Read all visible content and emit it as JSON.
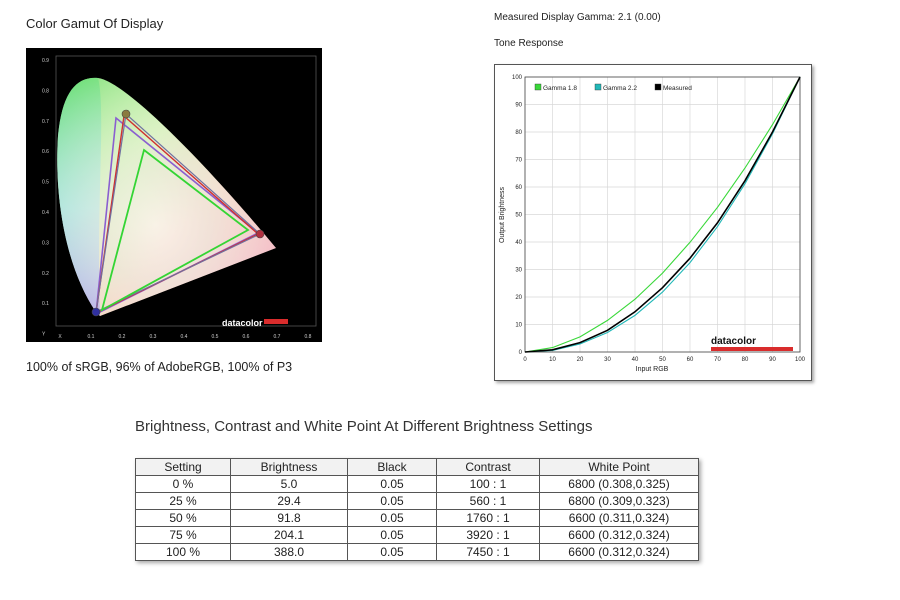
{
  "gamut": {
    "title": "Color Gamut Of Display",
    "caption": "100% of sRGB, 96% of AdobeRGB, 100% of P3",
    "brand": "datacolor",
    "y_ticks": [
      "0.9",
      "0.8",
      "0.7",
      "0.6",
      "0.5",
      "0.4",
      "0.3",
      "0.2",
      "0.1",
      "Y"
    ],
    "x_ticks": [
      "X",
      "0.1",
      "0.2",
      "0.3",
      "0.4",
      "0.5",
      "0.6",
      "0.7",
      "0.8"
    ],
    "colors": {
      "srgb": "#34d534",
      "adobe": "#8a5fd0",
      "p3": "#d03030",
      "measured": "#7070a0"
    }
  },
  "tone": {
    "measured_gamma": "Measured Display Gamma: 2.1 (0.00)",
    "title": "Tone Response",
    "brand": "datacolor"
  },
  "chart_data": {
    "type": "line",
    "x": [
      0,
      10,
      20,
      30,
      40,
      50,
      60,
      70,
      80,
      90,
      100
    ],
    "xlabel": "Input RGB",
    "ylabel": "Output Brightness",
    "xlim": [
      0,
      100
    ],
    "ylim": [
      0,
      100
    ],
    "ticks": [
      "0",
      "10",
      "20",
      "30",
      "40",
      "50",
      "60",
      "70",
      "80",
      "90",
      "100"
    ],
    "grid": true,
    "legend_position": "top-left",
    "series": [
      {
        "name": "Gamma 1.8",
        "color": "#39d839",
        "values": [
          0,
          1.6,
          5.5,
          11.5,
          19.2,
          28.7,
          39.9,
          52.6,
          66.9,
          82.7,
          100
        ]
      },
      {
        "name": "Gamma 2.2",
        "color": "#22b8b8",
        "values": [
          0,
          0.6,
          2.9,
          7.1,
          13.3,
          21.8,
          32.5,
          45.6,
          61.2,
          79.3,
          100
        ]
      },
      {
        "name": "Measured",
        "color": "#000000",
        "values": [
          0,
          0.8,
          3.4,
          7.9,
          14.6,
          23.4,
          34.1,
          47.0,
          62.3,
          80.0,
          100
        ]
      }
    ]
  },
  "table": {
    "title": "Brightness, Contrast and White Point At Different Brightness Settings",
    "headers": [
      "Setting",
      "Brightness",
      "Black",
      "Contrast",
      "White Point"
    ],
    "rows": [
      [
        "0 %",
        "5.0",
        "0.05",
        "100 : 1",
        "6800 (0.308,0.325)"
      ],
      [
        "25 %",
        "29.4",
        "0.05",
        "560 : 1",
        "6800 (0.309,0.323)"
      ],
      [
        "50 %",
        "91.8",
        "0.05",
        "1760 : 1",
        "6600 (0.311,0.324)"
      ],
      [
        "75 %",
        "204.1",
        "0.05",
        "3920 : 1",
        "6600 (0.312,0.324)"
      ],
      [
        "100 %",
        "388.0",
        "0.05",
        "7450 : 1",
        "6600 (0.312,0.324)"
      ]
    ]
  }
}
